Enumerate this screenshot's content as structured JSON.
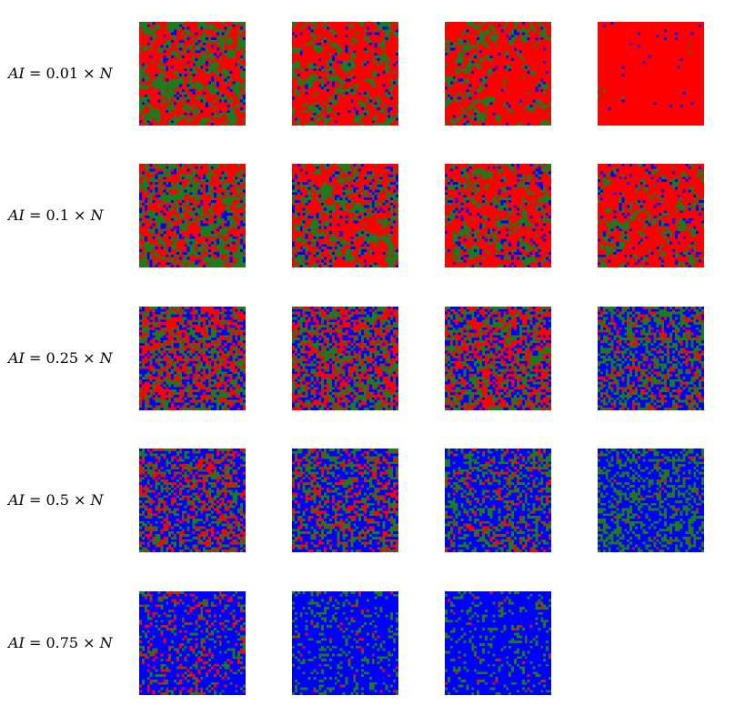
{
  "colors": {
    "red": "#ff0000",
    "green": "#1f7a1f",
    "blue": "#0000ff",
    "background": "#ffffff"
  },
  "rows": [
    {
      "label": {
        "var": "AI",
        "eq": " = ",
        "coef": "0.01",
        "times": " × ",
        "n": "N"
      },
      "panels": [
        {
          "red": 0.5,
          "green": 0.42,
          "blue": 0.08
        },
        {
          "red": 0.58,
          "green": 0.36,
          "blue": 0.06
        },
        {
          "red": 0.6,
          "green": 0.34,
          "blue": 0.06
        },
        {
          "red": 0.9,
          "green": 0.08,
          "blue": 0.02
        }
      ]
    },
    {
      "label": {
        "var": "AI",
        "eq": " = ",
        "coef": "0.1",
        "times": " × ",
        "n": "N"
      },
      "panels": [
        {
          "red": 0.46,
          "green": 0.4,
          "blue": 0.14
        },
        {
          "red": 0.5,
          "green": 0.36,
          "blue": 0.14
        },
        {
          "red": 0.55,
          "green": 0.33,
          "blue": 0.12
        },
        {
          "red": 0.62,
          "green": 0.28,
          "blue": 0.1
        }
      ]
    },
    {
      "label": {
        "var": "AI",
        "eq": " = ",
        "coef": "0.25",
        "times": " × ",
        "n": "N"
      },
      "panels": [
        {
          "red": 0.38,
          "green": 0.33,
          "blue": 0.29
        },
        {
          "red": 0.38,
          "green": 0.32,
          "blue": 0.3
        },
        {
          "red": 0.36,
          "green": 0.32,
          "blue": 0.32
        },
        {
          "red": 0.18,
          "green": 0.4,
          "blue": 0.42
        }
      ]
    },
    {
      "label": {
        "var": "AI",
        "eq": " = ",
        "coef": "0.5",
        "times": " × ",
        "n": "N"
      },
      "panels": [
        {
          "red": 0.24,
          "green": 0.28,
          "blue": 0.48
        },
        {
          "red": 0.2,
          "green": 0.3,
          "blue": 0.5
        },
        {
          "red": 0.1,
          "green": 0.35,
          "blue": 0.55
        },
        {
          "red": 0.02,
          "green": 0.38,
          "blue": 0.6
        }
      ]
    },
    {
      "label": {
        "var": "AI",
        "eq": " = ",
        "coef": "0.75",
        "times": " × ",
        "n": "N"
      },
      "panels": [
        {
          "red": 0.14,
          "green": 0.18,
          "blue": 0.68
        },
        {
          "red": 0.02,
          "green": 0.22,
          "blue": 0.76
        },
        {
          "red": 0.01,
          "green": 0.2,
          "blue": 0.79
        }
      ]
    }
  ]
}
